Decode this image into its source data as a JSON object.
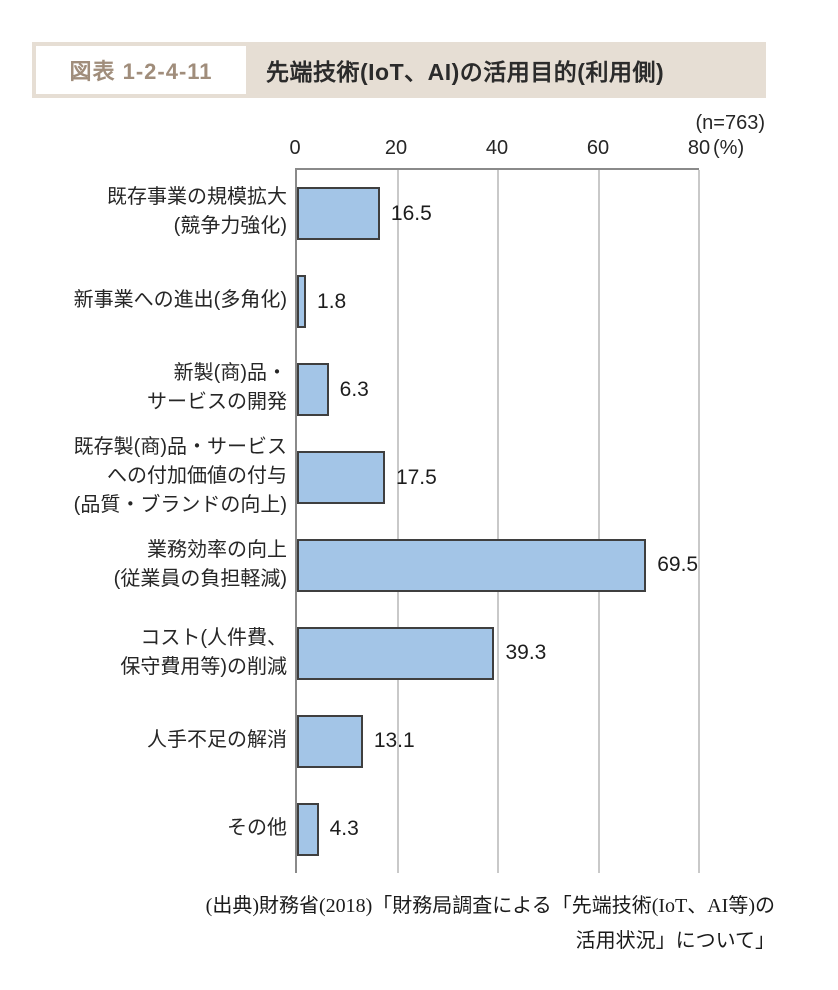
{
  "figure_header": {
    "label": "図表 1-2-4-11",
    "title": "先端技術(IoT、AI)の活用目的(利用側)"
  },
  "sample_size_label": "(n=763)",
  "chart_data": {
    "type": "bar",
    "orientation": "horizontal",
    "title": "先端技術(IoT、AI)の活用目的(利用側)",
    "n": 763,
    "unit": "%",
    "xlim": [
      0,
      80
    ],
    "xticks": [
      "0",
      "20",
      "40",
      "60",
      "80"
    ],
    "unit_label": "(%)",
    "grid": true,
    "categories": [
      "既存事業の規模拡大(競争力強化)",
      "新事業への進出(多角化)",
      "新製(商)品・サービスの開発",
      "既存製(商)品・サービスへの付加価値の付与(品質・ブランドの向上)",
      "業務効率の向上(従業員の負担軽減)",
      "コスト(人件費、保守費用等)の削減",
      "人手不足の解消",
      "その他"
    ],
    "values": [
      16.5,
      1.8,
      6.3,
      17.5,
      69.5,
      39.3,
      13.1,
      4.3
    ],
    "bars": [
      {
        "lines": [
          "既存事業の規模拡大",
          "(競争力強化)"
        ],
        "value": "16.5"
      },
      {
        "lines": [
          "新事業への進出(多角化)"
        ],
        "value": "1.8"
      },
      {
        "lines": [
          "新製(商)品・",
          "サービスの開発"
        ],
        "value": "6.3"
      },
      {
        "lines": [
          "既存製(商)品・サービス",
          "への付加価値の付与",
          "(品質・ブランドの向上)"
        ],
        "value": "17.5"
      },
      {
        "lines": [
          "業務効率の向上",
          "(従業員の負担軽減)"
        ],
        "value": "69.5"
      },
      {
        "lines": [
          "コスト(人件費、",
          "保守費用等)の削減"
        ],
        "value": "39.3"
      },
      {
        "lines": [
          "人手不足の解消"
        ],
        "value": "13.1"
      },
      {
        "lines": [
          "その他"
        ],
        "value": "4.3"
      }
    ]
  },
  "source": {
    "line1": "(出典)財務省(2018)「財務局調査による「先端技術(IoT、AI等)の",
    "line2": "活用状況」について」"
  },
  "colors": {
    "header_background": "#e6ded4",
    "header_label_text": "#a08d7b",
    "title_text": "#2b2b2b",
    "bar_fill": "#a3c5e7",
    "bar_border": "#3f3f3f",
    "axis_line": "#8a8a8a",
    "gridline": "#c9c9c9"
  }
}
